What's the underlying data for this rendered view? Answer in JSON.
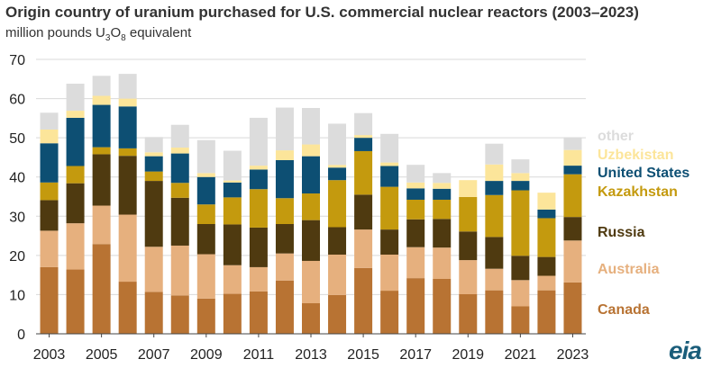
{
  "chart_data": {
    "type": "stacked-bar",
    "title": "Origin country of uranium purchased for U.S. commercial nuclear reactors (2003–2023)",
    "subtitle_prefix": "million pounds U",
    "subtitle_sub1": "3",
    "subtitle_mid": "O",
    "subtitle_sub2": "8",
    "subtitle_suffix": " equivalent",
    "categories": [
      "2003",
      "2004",
      "2005",
      "2006",
      "2007",
      "2008",
      "2009",
      "2010",
      "2011",
      "2012",
      "2013",
      "2014",
      "2015",
      "2016",
      "2017",
      "2018",
      "2019",
      "2020",
      "2021",
      "2022",
      "2023"
    ],
    "xtick_labels": [
      "2003",
      "2005",
      "2007",
      "2009",
      "2011",
      "2013",
      "2015",
      "2017",
      "2019",
      "2021",
      "2023"
    ],
    "ylim": [
      0,
      70
    ],
    "yticks": [
      0,
      10,
      20,
      30,
      40,
      50,
      60,
      70
    ],
    "grid": true,
    "legend_position": "right",
    "series": [
      {
        "name": "Canada",
        "color": "#b87333",
        "values": [
          17.0,
          16.4,
          22.9,
          13.3,
          10.7,
          9.8,
          9.0,
          10.2,
          10.8,
          13.6,
          7.8,
          9.9,
          16.8,
          11.0,
          14.2,
          14.0,
          10.1,
          11.1,
          7.0,
          11.1,
          13.1
        ]
      },
      {
        "name": "Australia",
        "color": "#e6b07e",
        "values": [
          9.3,
          11.8,
          9.8,
          17.1,
          11.5,
          12.7,
          11.3,
          7.3,
          6.2,
          6.9,
          10.8,
          10.3,
          9.8,
          9.2,
          7.9,
          8.0,
          8.7,
          5.5,
          6.7,
          3.7,
          10.7
        ]
      },
      {
        "name": "Russia",
        "color": "#4f3a10",
        "values": [
          7.8,
          10.2,
          13.1,
          15.0,
          16.8,
          12.2,
          7.7,
          10.4,
          10.1,
          7.5,
          10.4,
          7.0,
          8.9,
          6.4,
          7.1,
          7.3,
          7.3,
          8.1,
          6.2,
          4.8,
          6.0
        ]
      },
      {
        "name": "Kazakhstan",
        "color": "#c49a0e",
        "values": [
          4.5,
          4.4,
          1.8,
          1.9,
          2.4,
          3.8,
          5.0,
          6.9,
          9.8,
          6.6,
          6.8,
          12.0,
          11.1,
          10.9,
          5.0,
          4.9,
          8.8,
          10.7,
          16.7,
          9.9,
          10.9
        ]
      },
      {
        "name": "United States",
        "color": "#0d4f73",
        "values": [
          10.0,
          12.3,
          10.8,
          10.7,
          3.9,
          7.5,
          7.0,
          3.8,
          5.0,
          9.7,
          9.5,
          3.2,
          3.4,
          5.3,
          2.9,
          2.8,
          0.0,
          3.6,
          2.4,
          2.2,
          2.2
        ]
      },
      {
        "name": "Uzbekistan",
        "color": "#fce59a",
        "values": [
          3.5,
          1.8,
          2.3,
          2.0,
          1.0,
          1.5,
          1.0,
          0.5,
          1.0,
          2.5,
          3.0,
          0.7,
          0.7,
          0.9,
          1.5,
          1.5,
          4.3,
          4.2,
          2.0,
          4.3,
          4.0
        ]
      },
      {
        "name": "other",
        "color": "#dcdcdc",
        "values": [
          4.3,
          6.9,
          5.1,
          6.3,
          3.9,
          5.8,
          8.4,
          7.6,
          12.2,
          10.9,
          9.3,
          10.5,
          5.6,
          7.3,
          4.5,
          2.5,
          0.0,
          5.3,
          3.5,
          0.0,
          3.2
        ]
      }
    ],
    "legend_order": [
      "other",
      "Uzbekistan",
      "United States",
      "Kazakhstan",
      "Russia",
      "Australia",
      "Canada"
    ]
  },
  "branding": {
    "logo_text": "eia"
  }
}
